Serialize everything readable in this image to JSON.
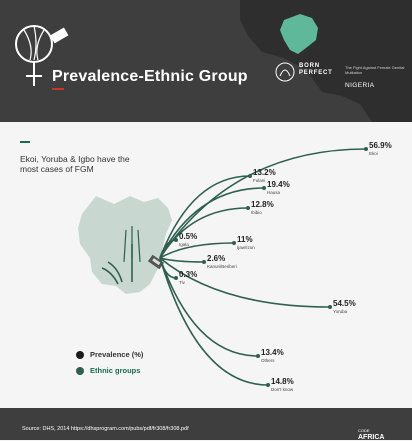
{
  "header": {
    "title": "Prevalence-Ethnic Group",
    "brand": [
      "BORN",
      "PERFECT"
    ],
    "tagline": "The Fight Against Female Genital Mutilation",
    "country": "NIGERIA"
  },
  "intro_text": "Ekoi, Yoruba & Igbo have the most cases of FGM",
  "legend": {
    "prevalence": "Prevalence (%)",
    "groups": "Ethnic groups"
  },
  "footer": {
    "source": "Source: DHS, 2014 https://dhsprogram.com/pubs/pdf/fr308/fr308.pdf",
    "logo_small": "CODE",
    "logo": "AFRICA"
  },
  "colors": {
    "header_bg": "#3e3e3e",
    "nigeria_map": "#5fb89a",
    "line_green": "#2f5f4f",
    "accent": "#1a6b50",
    "map_grey": "#c9d7d1"
  },
  "chart_data": {
    "type": "radial-callout",
    "title": "Prevalence-Ethnic Group",
    "unit": "%",
    "categories": [
      "Ekoi",
      "Fulani",
      "Hausa",
      "Ibibio",
      "Igala",
      "Ijaw/Izon",
      "Kanuri/Beriberi",
      "Tiv",
      "Yoruba",
      "Others",
      "Don't know"
    ],
    "values": [
      56.9,
      13.2,
      19.4,
      12.8,
      0.5,
      11,
      2.6,
      0.3,
      54.5,
      13.4,
      14.8
    ],
    "labels": [
      "56.9%",
      "13.2%",
      "19.4%",
      "12.8%",
      "0.5%",
      "11%",
      "2.6%",
      "0.3%",
      "54.5%",
      "13.4%",
      "14.8%"
    ]
  }
}
